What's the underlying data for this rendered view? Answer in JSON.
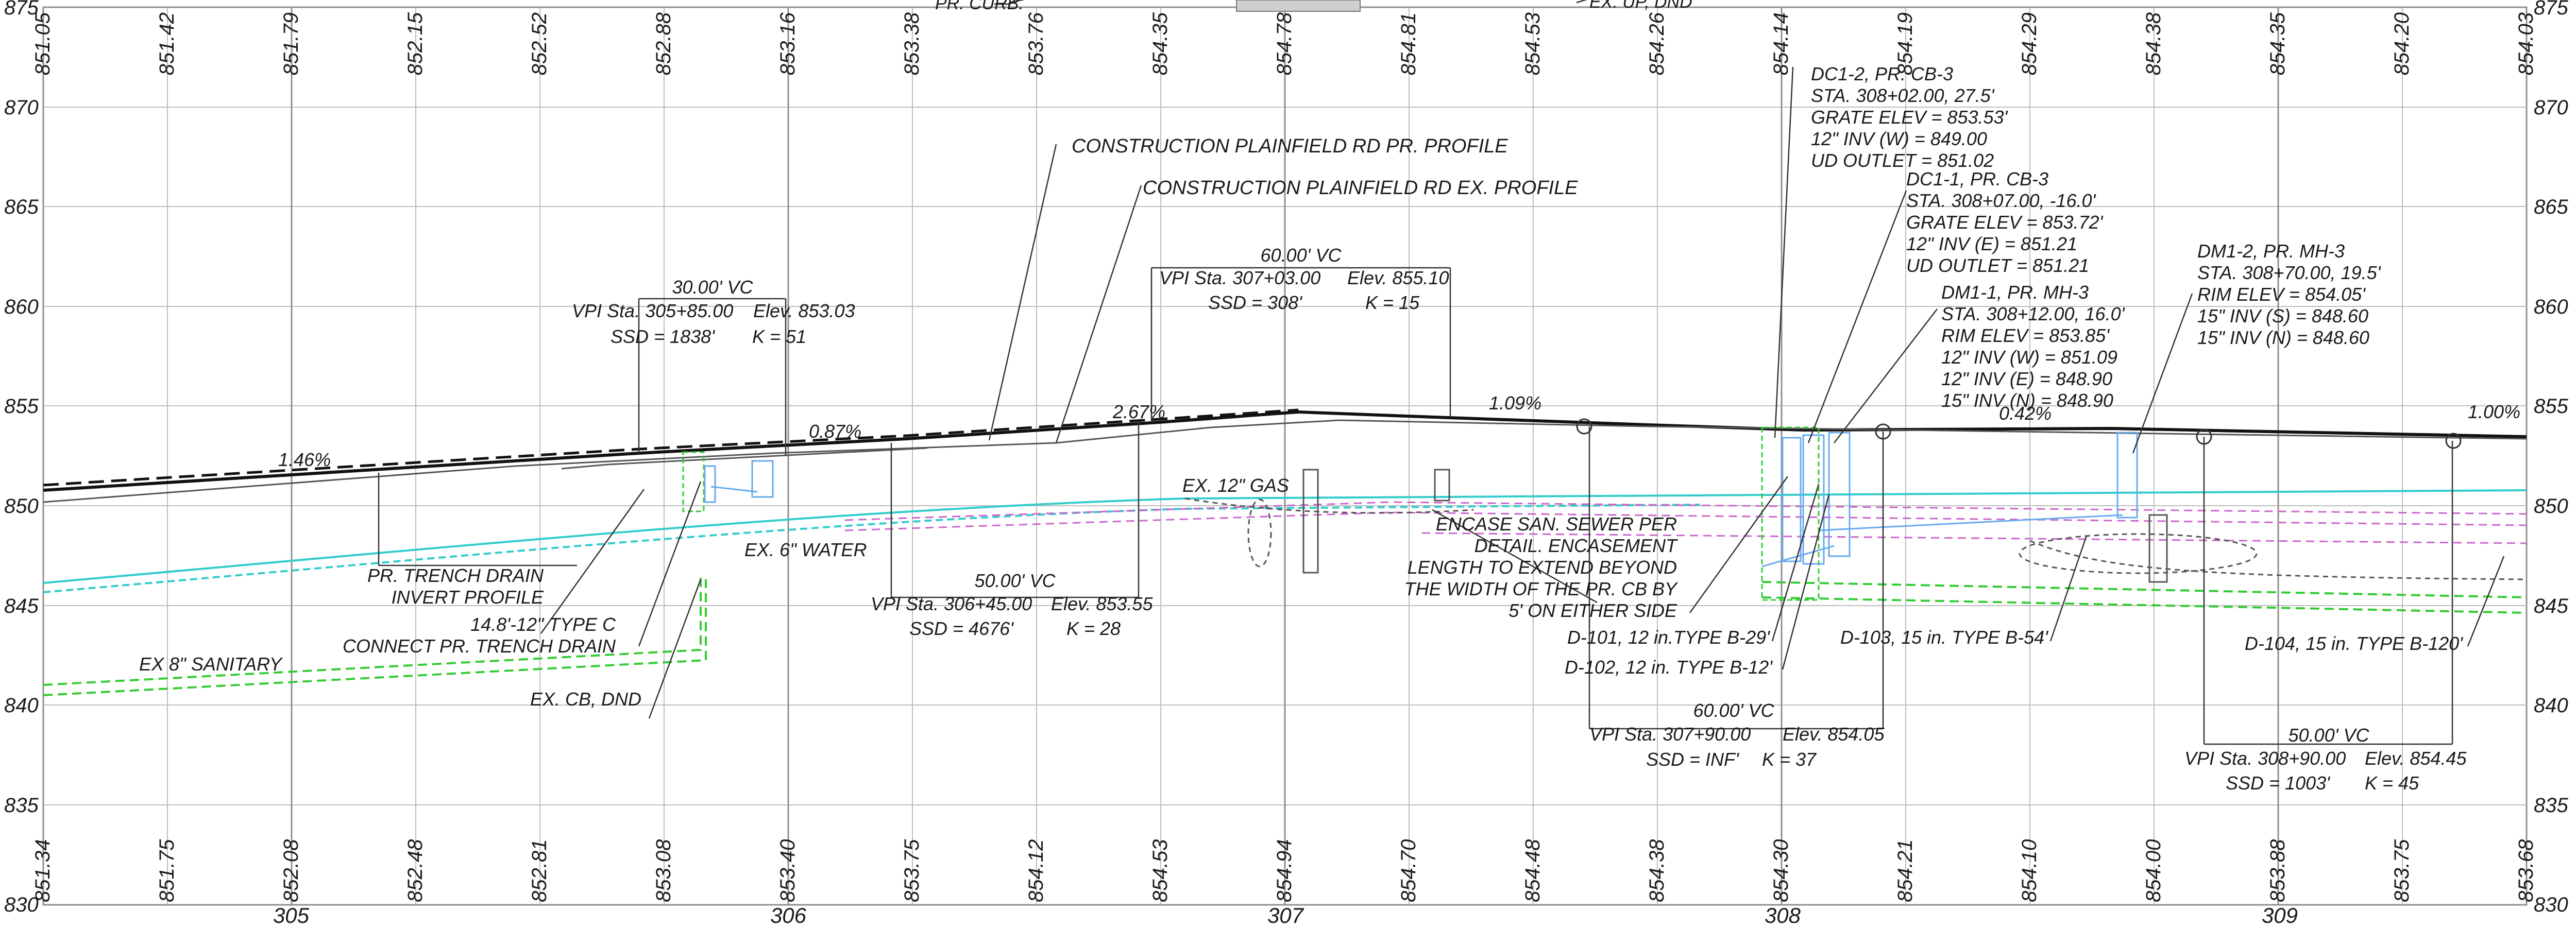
{
  "axes": {
    "left_elev_ticks": [
      "875",
      "870",
      "865",
      "860",
      "855",
      "850",
      "845",
      "840",
      "835",
      "830"
    ],
    "right_elev_ticks": [
      "875",
      "870",
      "865",
      "860",
      "855",
      "850",
      "845",
      "840",
      "835",
      "830"
    ],
    "station_labels": [
      "305",
      "306",
      "307",
      "308",
      "309"
    ]
  },
  "top_elevations": [
    "851.05",
    "851.42",
    "851.79",
    "852.15",
    "852.52",
    "852.88",
    "853.16",
    "853.38",
    "853.76",
    "854.35",
    "854.78",
    "854.81",
    "854.53",
    "854.26",
    "854.14",
    "854.19",
    "854.29",
    "854.38",
    "854.35",
    "854.20",
    "854.03"
  ],
  "bottom_elevations": [
    "851.34",
    "851.75",
    "852.08",
    "852.48",
    "852.81",
    "853.08",
    "853.40",
    "853.75",
    "854.12",
    "854.53",
    "854.94",
    "854.70",
    "854.48",
    "854.38",
    "854.30",
    "854.21",
    "854.10",
    "854.00",
    "853.88",
    "853.75",
    "853.68"
  ],
  "grades": [
    "1.46%",
    "0.87%",
    "2.67%",
    "1.09%",
    "0.42%",
    "1.00%"
  ],
  "top_partial_labels": [
    "PR. CURB.",
    "EX. UP, DND"
  ],
  "profile_labels": {
    "pr_profile": "CONSTRUCTION PLAINFIELD RD PR. PROFILE",
    "ex_profile": "CONSTRUCTION PLAINFIELD RD EX. PROFILE"
  },
  "vertical_curves": [
    {
      "len": "30.00' VC",
      "vpi": "VPI Sta. 305+85.00",
      "elev": "Elev. 853.03",
      "ssd": "SSD = 1838'",
      "k": "K = 51"
    },
    {
      "len": "60.00' VC",
      "vpi": "VPI Sta. 307+03.00",
      "elev": "Elev. 855.10",
      "ssd": "SSD = 308'",
      "k": "K = 15"
    },
    {
      "len": "50.00' VC",
      "vpi": "VPI Sta. 306+45.00",
      "elev": "Elev. 853.55",
      "ssd": "SSD = 4676'",
      "k": "K = 28"
    },
    {
      "len": "60.00' VC",
      "vpi": "VPI Sta. 307+90.00",
      "elev": "Elev. 854.05",
      "ssd": "SSD = INF'",
      "k": "K = 37"
    },
    {
      "len": "50.00' VC",
      "vpi": "VPI Sta. 308+90.00",
      "elev": "Elev. 854.45",
      "ssd": "SSD = 1003'",
      "k": "K = 45"
    }
  ],
  "structures": {
    "dc12": [
      "DC1-2, PR. CB-3",
      "STA. 308+02.00, 27.5'",
      "GRATE ELEV = 853.53'",
      "12\" INV (W) = 849.00",
      "UD OUTLET = 851.02"
    ],
    "dc11": [
      "DC1-1, PR. CB-3",
      "STA. 308+07.00, -16.0'",
      "GRATE ELEV = 853.72'",
      "12\" INV (E) = 851.21",
      "UD OUTLET = 851.21"
    ],
    "dm11": [
      "DM1-1, PR. MH-3",
      "STA. 308+12.00, 16.0'",
      "RIM ELEV = 853.85'",
      "12\" INV (W) = 851.09",
      "12\" INV (E) = 848.90",
      "15\" INV (N) = 848.90"
    ],
    "dm12": [
      "DM1-2, PR. MH-3",
      "STA. 308+70.00, 19.5'",
      "RIM ELEV = 854.05'",
      "15\" INV (S) = 848.60",
      "15\" INV (N) = 848.60"
    ]
  },
  "utility_labels": {
    "ex_gas": "EX. 12\" GAS",
    "ex_water": "EX. 6\" WATER",
    "ex_sanitary": "EX 8\" SANITARY",
    "trench_drain": [
      "PR. TRENCH DRAIN",
      "INVERT PROFILE"
    ],
    "type_c": [
      "14.8'-12\" TYPE C",
      "CONNECT PR. TRENCH DRAIN"
    ],
    "ex_cb": "EX. CB, DND",
    "encase": [
      "ENCASE SAN. SEWER PER",
      "DETAIL. ENCASEMENT",
      "LENGTH TO EXTEND BEYOND",
      "THE WIDTH OF THE PR. CB BY",
      "5' ON EITHER SIDE"
    ]
  },
  "pipe_labels": {
    "d101": "D-101, 12 in.TYPE B-29'",
    "d102": "D-102, 12 in. TYPE B-12'",
    "d103": "D-103, 15 in. TYPE B-54'",
    "d104": "D-104, 15 in. TYPE B-120'"
  },
  "colors": {
    "grid": "#bdbdbd",
    "profile": "#111111",
    "water": "#33cccc",
    "sanitary": "#33cc33",
    "gas": "#cc66cc",
    "structure": "#66aaee",
    "green_structure": "#33cc33"
  }
}
